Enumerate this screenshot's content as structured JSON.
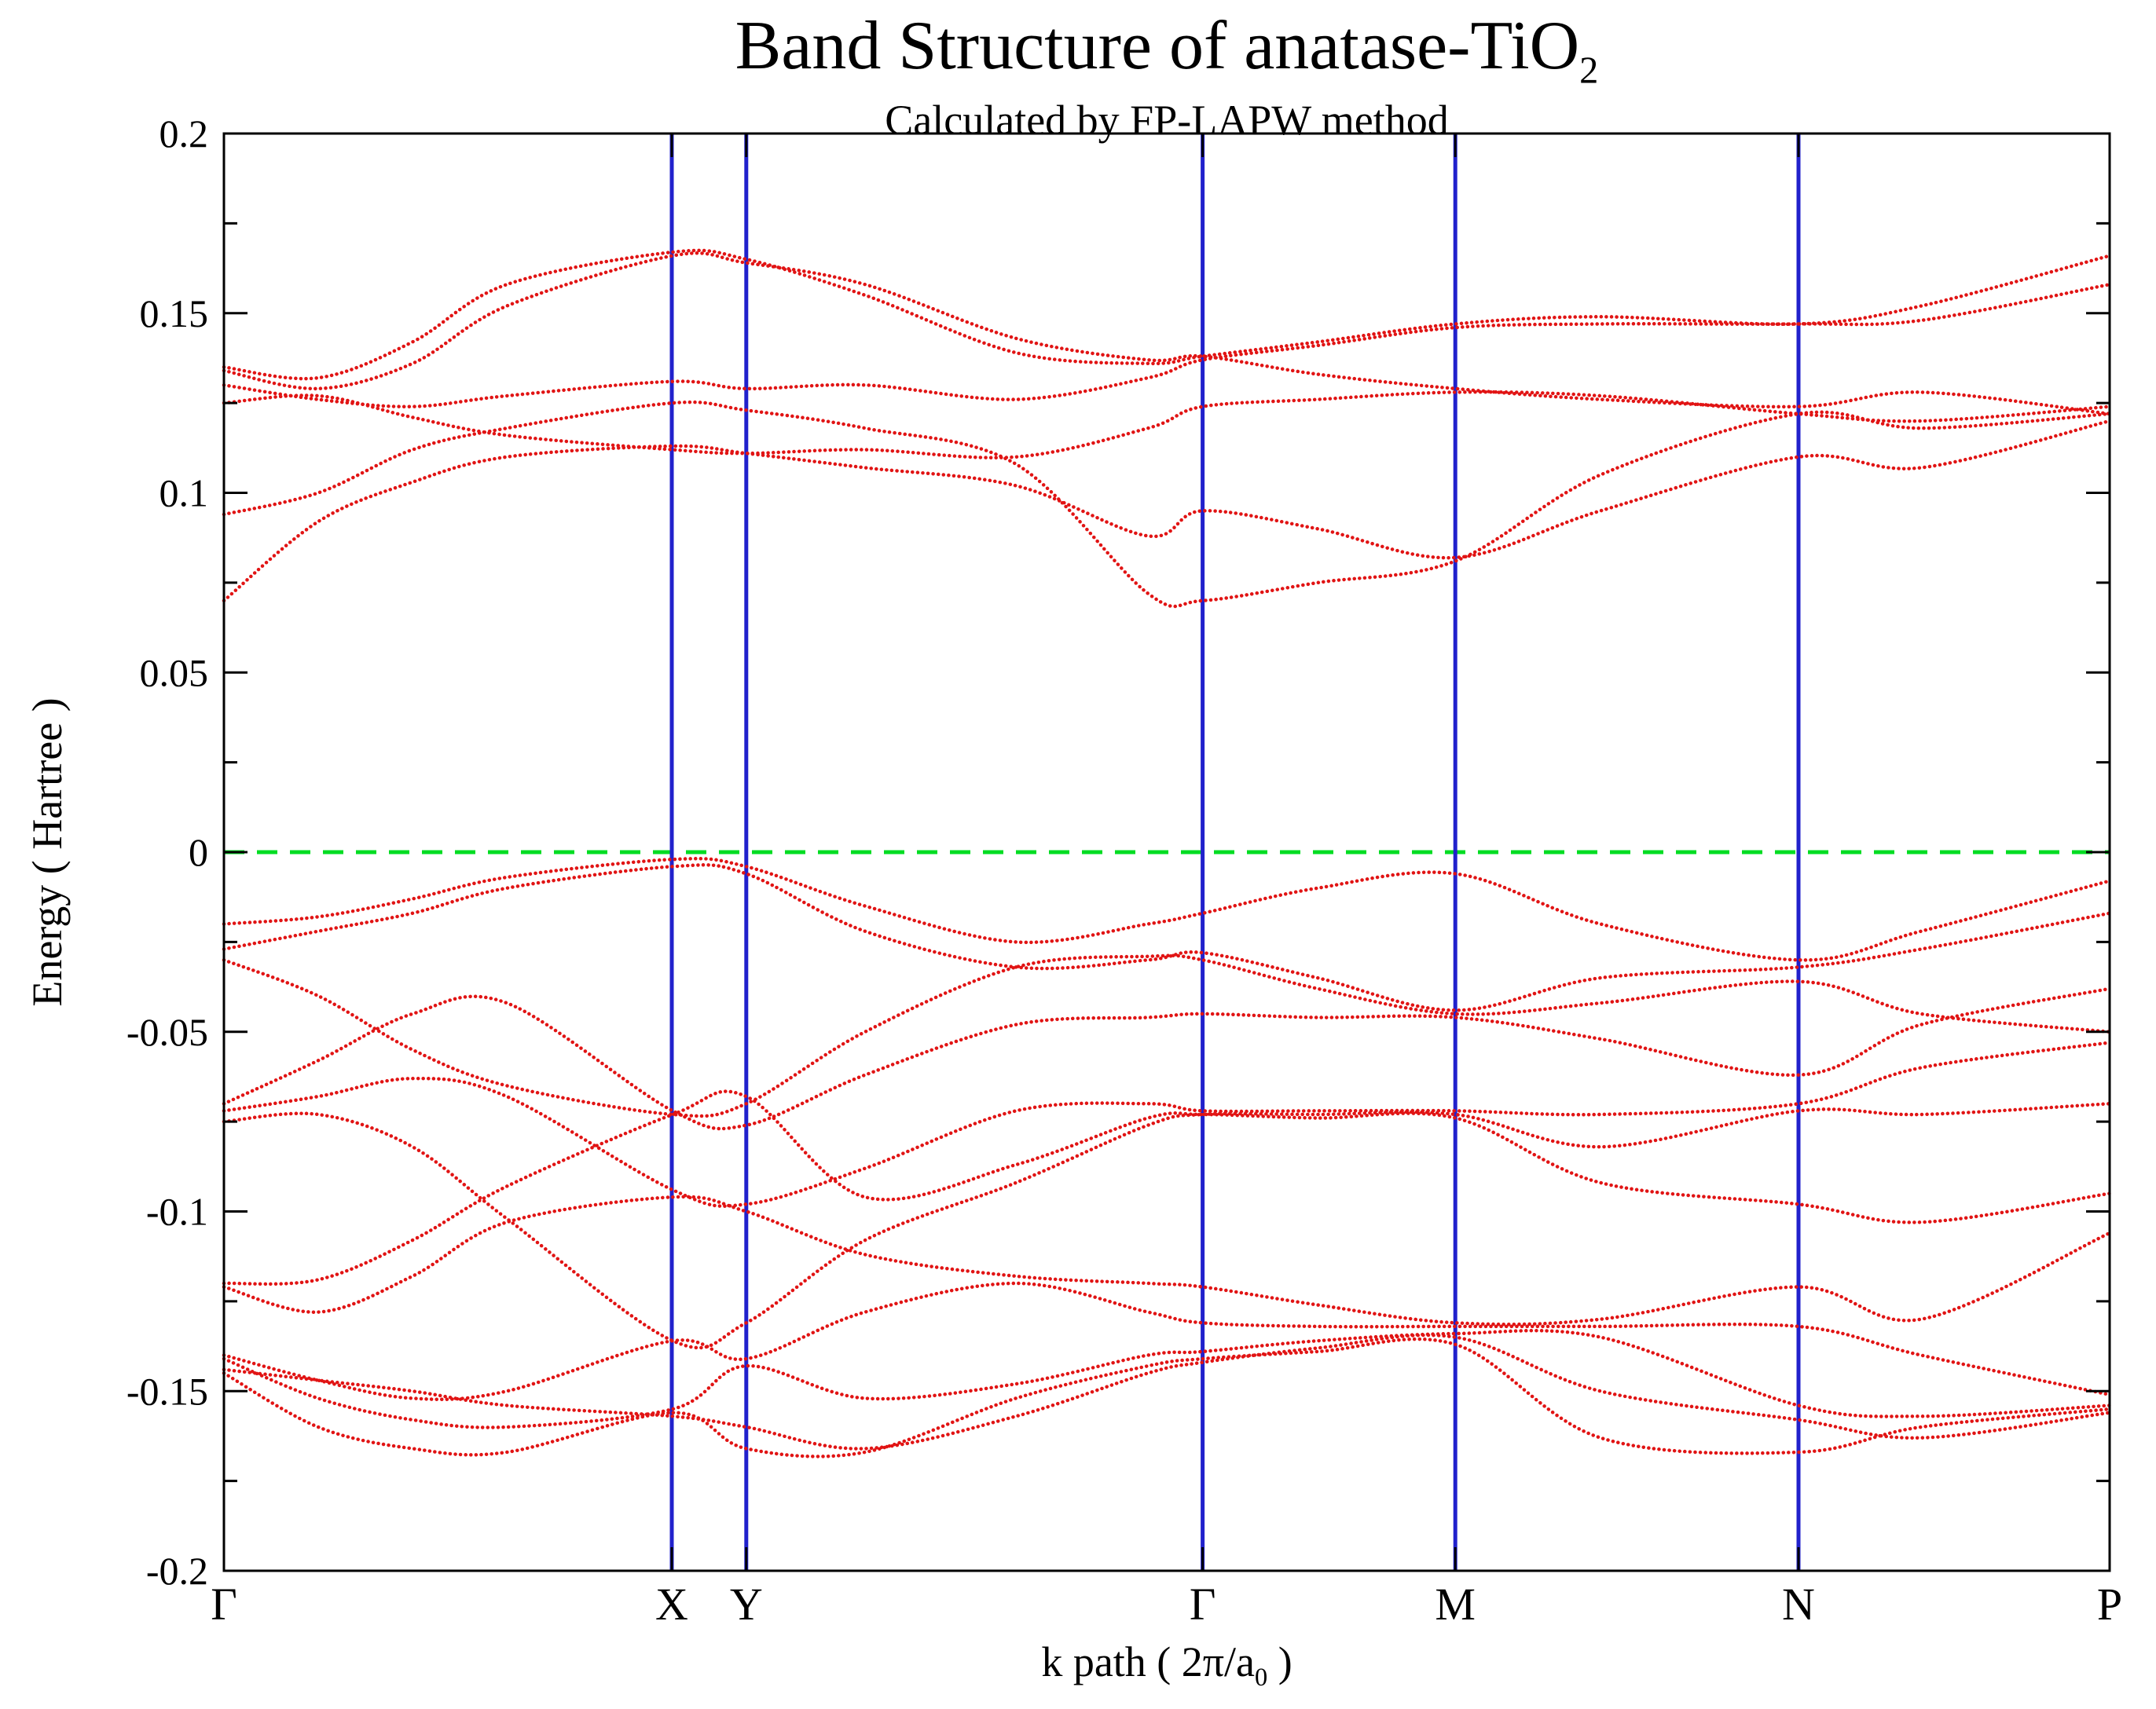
{
  "title": {
    "text": "Band Structure of anatase-TiO",
    "sub": "2"
  },
  "subtitle": "Calculated by FP-LAPW method",
  "axes": {
    "y_label": "Energy ( Hartree )",
    "x_label_pre": "k path ( 2π/a",
    "x_label_sub": "0",
    "x_label_post": " )"
  },
  "chart_data": {
    "type": "line",
    "title": "Band Structure of anatase-TiO2",
    "subtitle": "Calculated by FP-LAPW method",
    "xlabel": "k path ( 2π/a0 )",
    "ylabel": "Energy ( Hartree )",
    "ylim": [
      -0.2,
      0.2
    ],
    "grid": false,
    "legend": false,
    "yticks": [
      {
        "value": 0.2,
        "label": "0.2"
      },
      {
        "value": 0.15,
        "label": "0.15"
      },
      {
        "value": 0.1,
        "label": "0.1"
      },
      {
        "value": 0.05,
        "label": "0.05"
      },
      {
        "value": 0,
        "label": "0"
      },
      {
        "value": -0.05,
        "label": "-0.05"
      },
      {
        "value": -0.1,
        "label": "-0.1"
      },
      {
        "value": -0.15,
        "label": "-0.15"
      },
      {
        "value": -0.2,
        "label": "-0.2"
      }
    ],
    "ytick_minor_step": 0.025,
    "kpoints": [
      {
        "label": "Γ",
        "pos": 0
      },
      {
        "label": "X",
        "pos": 0.2375
      },
      {
        "label": "Y",
        "pos": 0.277
      },
      {
        "label": "Γ",
        "pos": 0.519
      },
      {
        "label": "M",
        "pos": 0.653
      },
      {
        "label": "N",
        "pos": 0.835
      },
      {
        "label": "P",
        "pos": 1
      }
    ],
    "vertical_line_positions": [
      0.2375,
      0.277,
      0.519,
      0.653,
      0.835
    ],
    "fermi_level": 0,
    "colors": {
      "bands": "#e11414",
      "kpoint_lines": "#2121cc",
      "fermi_line": "#00dd22",
      "frame": "#000000"
    },
    "bands": [
      [
        [
          0,
          0.07
        ],
        [
          0.05,
          0.092
        ],
        [
          0.1,
          0.103
        ],
        [
          0.15,
          0.11
        ],
        [
          0.238,
          0.113
        ],
        [
          0.277,
          0.111
        ],
        [
          0.34,
          0.107
        ],
        [
          0.42,
          0.102
        ],
        [
          0.49,
          0.088
        ],
        [
          0.519,
          0.095
        ],
        [
          0.58,
          0.09
        ],
        [
          0.653,
          0.082
        ],
        [
          0.73,
          0.095
        ],
        [
          0.835,
          0.11
        ],
        [
          0.9,
          0.107
        ],
        [
          1,
          0.12
        ]
      ],
      [
        [
          0,
          0.094
        ],
        [
          0.05,
          0.1
        ],
        [
          0.1,
          0.112
        ],
        [
          0.15,
          0.118
        ],
        [
          0.238,
          0.125
        ],
        [
          0.277,
          0.123
        ],
        [
          0.34,
          0.118
        ],
        [
          0.42,
          0.108
        ],
        [
          0.49,
          0.072
        ],
        [
          0.519,
          0.07
        ],
        [
          0.58,
          0.075
        ],
        [
          0.653,
          0.081
        ],
        [
          0.73,
          0.105
        ],
        [
          0.835,
          0.122
        ],
        [
          0.9,
          0.118
        ],
        [
          1,
          0.122
        ]
      ],
      [
        [
          0,
          0.125
        ],
        [
          0.05,
          0.127
        ],
        [
          0.1,
          0.121
        ],
        [
          0.15,
          0.116
        ],
        [
          0.238,
          0.112
        ],
        [
          0.277,
          0.111
        ],
        [
          0.34,
          0.112
        ],
        [
          0.42,
          0.11
        ],
        [
          0.49,
          0.118
        ],
        [
          0.519,
          0.124
        ],
        [
          0.58,
          0.126
        ],
        [
          0.653,
          0.128
        ],
        [
          0.73,
          0.127
        ],
        [
          0.835,
          0.122
        ],
        [
          0.9,
          0.12
        ],
        [
          1,
          0.124
        ]
      ],
      [
        [
          0,
          0.13
        ],
        [
          0.05,
          0.126
        ],
        [
          0.1,
          0.124
        ],
        [
          0.15,
          0.127
        ],
        [
          0.238,
          0.131
        ],
        [
          0.277,
          0.129
        ],
        [
          0.34,
          0.13
        ],
        [
          0.42,
          0.126
        ],
        [
          0.49,
          0.132
        ],
        [
          0.519,
          0.137
        ],
        [
          0.58,
          0.141
        ],
        [
          0.653,
          0.146
        ],
        [
          0.73,
          0.147
        ],
        [
          0.835,
          0.147
        ],
        [
          0.9,
          0.148
        ],
        [
          1,
          0.158
        ]
      ],
      [
        [
          0,
          0.134
        ],
        [
          0.05,
          0.129
        ],
        [
          0.1,
          0.136
        ],
        [
          0.15,
          0.152
        ],
        [
          0.238,
          0.166
        ],
        [
          0.277,
          0.164
        ],
        [
          0.34,
          0.158
        ],
        [
          0.42,
          0.143
        ],
        [
          0.49,
          0.137
        ],
        [
          0.519,
          0.138
        ],
        [
          0.58,
          0.133
        ],
        [
          0.653,
          0.129
        ],
        [
          0.73,
          0.126
        ],
        [
          0.835,
          0.124
        ],
        [
          0.9,
          0.128
        ],
        [
          1,
          0.122
        ]
      ],
      [
        [
          0,
          0.135
        ],
        [
          0.05,
          0.132
        ],
        [
          0.1,
          0.142
        ],
        [
          0.15,
          0.158
        ],
        [
          0.238,
          0.167
        ],
        [
          0.277,
          0.165
        ],
        [
          0.34,
          0.155
        ],
        [
          0.42,
          0.139
        ],
        [
          0.49,
          0.136
        ],
        [
          0.519,
          0.138
        ],
        [
          0.58,
          0.142
        ],
        [
          0.653,
          0.147
        ],
        [
          0.73,
          0.149
        ],
        [
          0.835,
          0.147
        ],
        [
          0.9,
          0.152
        ],
        [
          1,
          0.166
        ]
      ],
      [
        [
          0,
          -0.02
        ],
        [
          0.05,
          -0.018
        ],
        [
          0.1,
          -0.013
        ],
        [
          0.15,
          -0.007
        ],
        [
          0.238,
          -0.002
        ],
        [
          0.277,
          -0.004
        ],
        [
          0.34,
          -0.015
        ],
        [
          0.42,
          -0.025
        ],
        [
          0.49,
          -0.02
        ],
        [
          0.519,
          -0.017
        ],
        [
          0.58,
          -0.01
        ],
        [
          0.653,
          -0.006
        ],
        [
          0.73,
          -0.02
        ],
        [
          0.835,
          -0.03
        ],
        [
          0.9,
          -0.022
        ],
        [
          1,
          -0.008
        ]
      ],
      [
        [
          0,
          -0.027
        ],
        [
          0.05,
          -0.022
        ],
        [
          0.1,
          -0.017
        ],
        [
          0.15,
          -0.01
        ],
        [
          0.238,
          -0.004
        ],
        [
          0.277,
          -0.006
        ],
        [
          0.34,
          -0.022
        ],
        [
          0.42,
          -0.032
        ],
        [
          0.49,
          -0.03
        ],
        [
          0.519,
          -0.028
        ],
        [
          0.58,
          -0.035
        ],
        [
          0.653,
          -0.044
        ],
        [
          0.73,
          -0.035
        ],
        [
          0.835,
          -0.032
        ],
        [
          0.9,
          -0.027
        ],
        [
          1,
          -0.017
        ]
      ],
      [
        [
          0,
          -0.03
        ],
        [
          0.05,
          -0.04
        ],
        [
          0.1,
          -0.055
        ],
        [
          0.15,
          -0.065
        ],
        [
          0.238,
          -0.073
        ],
        [
          0.277,
          -0.07
        ],
        [
          0.34,
          -0.05
        ],
        [
          0.42,
          -0.032
        ],
        [
          0.49,
          -0.029
        ],
        [
          0.519,
          -0.03
        ],
        [
          0.58,
          -0.038
        ],
        [
          0.653,
          -0.045
        ],
        [
          0.73,
          -0.042
        ],
        [
          0.835,
          -0.036
        ],
        [
          0.9,
          -0.045
        ],
        [
          1,
          -0.05
        ]
      ],
      [
        [
          0,
          -0.07
        ],
        [
          0.05,
          -0.058
        ],
        [
          0.1,
          -0.045
        ],
        [
          0.15,
          -0.042
        ],
        [
          0.238,
          -0.072
        ],
        [
          0.277,
          -0.076
        ],
        [
          0.34,
          -0.062
        ],
        [
          0.42,
          -0.048
        ],
        [
          0.49,
          -0.046
        ],
        [
          0.519,
          -0.045
        ],
        [
          0.58,
          -0.046
        ],
        [
          0.653,
          -0.046
        ],
        [
          0.73,
          -0.052
        ],
        [
          0.835,
          -0.062
        ],
        [
          0.9,
          -0.048
        ],
        [
          1,
          -0.038
        ]
      ],
      [
        [
          0,
          -0.072
        ],
        [
          0.05,
          -0.068
        ],
        [
          0.1,
          -0.063
        ],
        [
          0.15,
          -0.068
        ],
        [
          0.238,
          -0.094
        ],
        [
          0.277,
          -0.098
        ],
        [
          0.34,
          -0.088
        ],
        [
          0.42,
          -0.072
        ],
        [
          0.49,
          -0.07
        ],
        [
          0.519,
          -0.072
        ],
        [
          0.58,
          -0.072
        ],
        [
          0.653,
          -0.072
        ],
        [
          0.73,
          -0.073
        ],
        [
          0.835,
          -0.07
        ],
        [
          0.9,
          -0.06
        ],
        [
          1,
          -0.053
        ]
      ],
      [
        [
          0,
          -0.075
        ],
        [
          0.05,
          -0.073
        ],
        [
          0.1,
          -0.082
        ],
        [
          0.15,
          -0.102
        ],
        [
          0.238,
          -0.136
        ],
        [
          0.277,
          -0.131
        ],
        [
          0.34,
          -0.108
        ],
        [
          0.42,
          -0.092
        ],
        [
          0.49,
          -0.076
        ],
        [
          0.519,
          -0.073
        ],
        [
          0.58,
          -0.073
        ],
        [
          0.653,
          -0.073
        ],
        [
          0.73,
          -0.082
        ],
        [
          0.835,
          -0.072
        ],
        [
          0.9,
          -0.073
        ],
        [
          1,
          -0.07
        ]
      ],
      [
        [
          0,
          -0.12
        ],
        [
          0.05,
          -0.119
        ],
        [
          0.1,
          -0.108
        ],
        [
          0.15,
          -0.093
        ],
        [
          0.238,
          -0.073
        ],
        [
          0.277,
          -0.068
        ],
        [
          0.34,
          -0.096
        ],
        [
          0.42,
          -0.087
        ],
        [
          0.49,
          -0.074
        ],
        [
          0.519,
          -0.073
        ],
        [
          0.58,
          -0.074
        ],
        [
          0.653,
          -0.074
        ],
        [
          0.73,
          -0.092
        ],
        [
          0.835,
          -0.098
        ],
        [
          0.9,
          -0.103
        ],
        [
          1,
          -0.095
        ]
      ],
      [
        [
          0,
          -0.121
        ],
        [
          0.05,
          -0.128
        ],
        [
          0.1,
          -0.118
        ],
        [
          0.15,
          -0.103
        ],
        [
          0.238,
          -0.096
        ],
        [
          0.277,
          -0.1
        ],
        [
          0.34,
          -0.112
        ],
        [
          0.42,
          -0.118
        ],
        [
          0.49,
          -0.12
        ],
        [
          0.519,
          -0.121
        ],
        [
          0.58,
          -0.126
        ],
        [
          0.653,
          -0.131
        ],
        [
          0.73,
          -0.13
        ],
        [
          0.835,
          -0.121
        ],
        [
          0.9,
          -0.13
        ],
        [
          1,
          -0.106
        ]
      ],
      [
        [
          0,
          -0.14
        ],
        [
          0.05,
          -0.147
        ],
        [
          0.1,
          -0.152
        ],
        [
          0.15,
          -0.15
        ],
        [
          0.238,
          -0.136
        ],
        [
          0.277,
          -0.141
        ],
        [
          0.34,
          -0.128
        ],
        [
          0.42,
          -0.12
        ],
        [
          0.49,
          -0.128
        ],
        [
          0.519,
          -0.131
        ],
        [
          0.58,
          -0.132
        ],
        [
          0.653,
          -0.132
        ],
        [
          0.73,
          -0.132
        ],
        [
          0.835,
          -0.132
        ],
        [
          0.9,
          -0.14
        ],
        [
          1,
          -0.151
        ]
      ],
      [
        [
          0,
          -0.141
        ],
        [
          0.05,
          -0.152
        ],
        [
          0.1,
          -0.158
        ],
        [
          0.15,
          -0.16
        ],
        [
          0.238,
          -0.155
        ],
        [
          0.277,
          -0.143
        ],
        [
          0.34,
          -0.152
        ],
        [
          0.42,
          -0.148
        ],
        [
          0.49,
          -0.14
        ],
        [
          0.519,
          -0.139
        ],
        [
          0.58,
          -0.136
        ],
        [
          0.653,
          -0.134
        ],
        [
          0.73,
          -0.135
        ],
        [
          0.835,
          -0.154
        ],
        [
          0.9,
          -0.157
        ],
        [
          1,
          -0.154
        ]
      ],
      [
        [
          0,
          -0.144
        ],
        [
          0.05,
          -0.147
        ],
        [
          0.1,
          -0.15
        ],
        [
          0.15,
          -0.154
        ],
        [
          0.238,
          -0.157
        ],
        [
          0.277,
          -0.16
        ],
        [
          0.34,
          -0.166
        ],
        [
          0.42,
          -0.157
        ],
        [
          0.49,
          -0.145
        ],
        [
          0.519,
          -0.142
        ],
        [
          0.58,
          -0.138
        ],
        [
          0.653,
          -0.135
        ],
        [
          0.73,
          -0.15
        ],
        [
          0.835,
          -0.158
        ],
        [
          0.9,
          -0.163
        ],
        [
          1,
          -0.156
        ]
      ],
      [
        [
          0,
          -0.145
        ],
        [
          0.05,
          -0.16
        ],
        [
          0.1,
          -0.166
        ],
        [
          0.15,
          -0.167
        ],
        [
          0.238,
          -0.156
        ],
        [
          0.277,
          -0.166
        ],
        [
          0.34,
          -0.167
        ],
        [
          0.42,
          -0.152
        ],
        [
          0.49,
          -0.143
        ],
        [
          0.519,
          -0.141
        ],
        [
          0.58,
          -0.139
        ],
        [
          0.653,
          -0.137
        ],
        [
          0.73,
          -0.163
        ],
        [
          0.835,
          -0.167
        ],
        [
          0.9,
          -0.16
        ],
        [
          1,
          -0.155
        ]
      ]
    ]
  }
}
